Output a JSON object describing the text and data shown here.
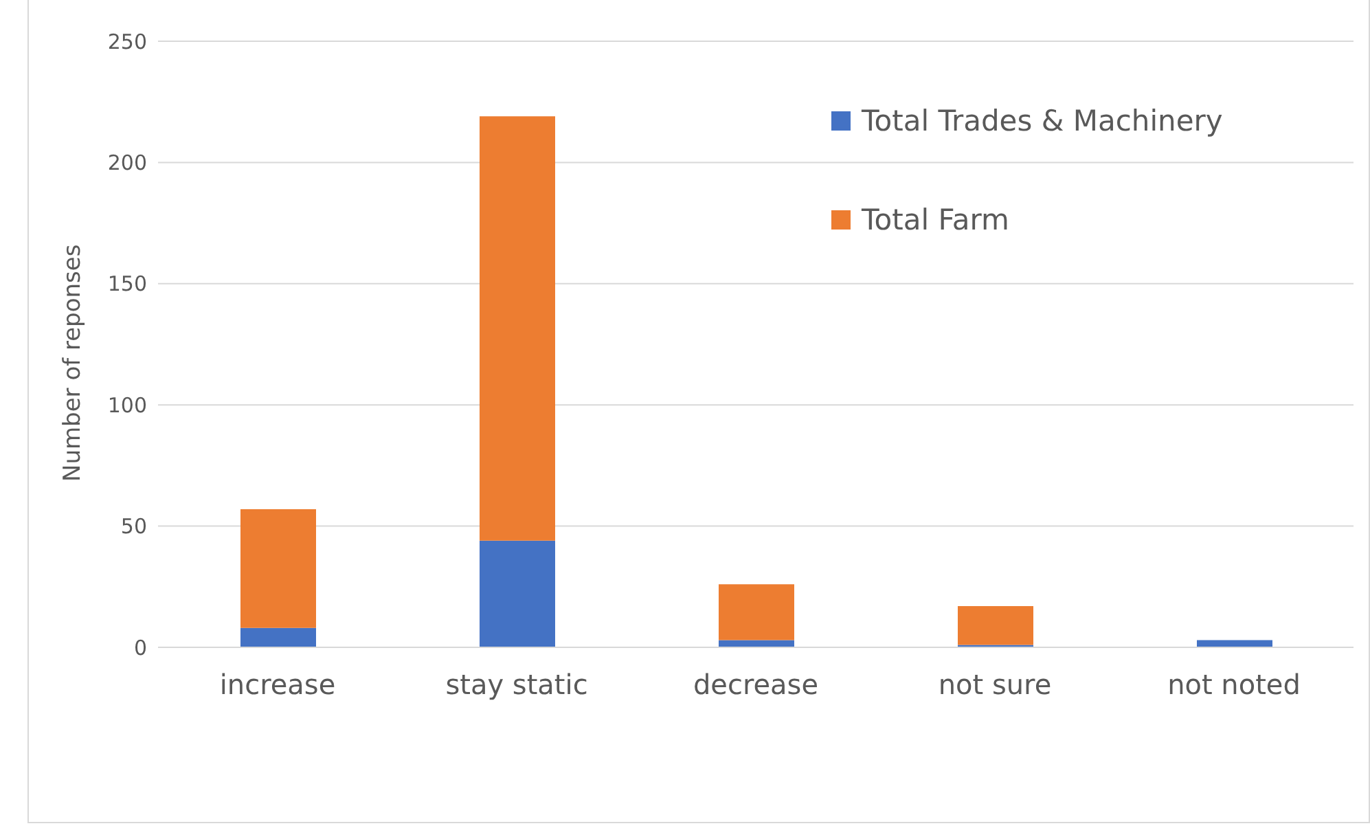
{
  "chart_data": {
    "type": "bar",
    "stacked": true,
    "ylabel": "Number of reponses",
    "categories": [
      "increase",
      "stay static",
      "decrease",
      "not sure",
      "not noted"
    ],
    "series": [
      {
        "name": "Total Trades & Machinery",
        "color": "#4472c4",
        "values": [
          8,
          44,
          3,
          1,
          3
        ]
      },
      {
        "name": "Total Farm",
        "color": "#ed7d31",
        "values": [
          49,
          175,
          23,
          16,
          0
        ]
      }
    ],
    "ylim": [
      0,
      250
    ],
    "yticks": [
      0,
      50,
      100,
      150,
      200,
      250
    ],
    "grid": "y",
    "legend": "top right"
  }
}
